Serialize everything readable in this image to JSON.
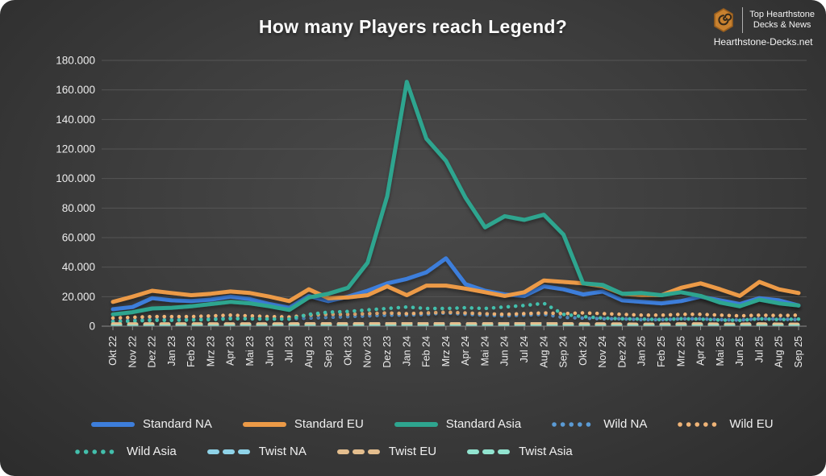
{
  "page": {
    "background": "#ffffff",
    "card_bg_center": "#4a4a4a",
    "card_bg_edge": "#2c2c2c",
    "gridline_color": "#555555",
    "axis_text_color": "#ececec"
  },
  "header": {
    "title": "How many Players reach Legend?",
    "logo": {
      "line1": "Top Hearthstone",
      "line2": "Decks & News",
      "site": "Hearthstone-Decks.net",
      "icon": "hearthstone-spiral-icon",
      "icon_color": "#C8812F"
    }
  },
  "chart_data": {
    "type": "line",
    "title": "How many Players reach Legend?",
    "x_labels": [
      "Okt 22",
      "Nov 22",
      "Dez 22",
      "Jan 23",
      "Feb 23",
      "Mrz 23",
      "Apr 23",
      "Mai 23",
      "Jun 23",
      "Jul 23",
      "Aug 23",
      "Sep 23",
      "Okt 23",
      "Nov 23",
      "Dez 23",
      "Jan 24",
      "Feb 24",
      "Mrz 24",
      "Apr 24",
      "Mai 24",
      "Jun 24",
      "Jul 24",
      "Aug 24",
      "Sep 24",
      "Okt 24",
      "Nov 24",
      "Dez 24",
      "Jan 25",
      "Feb 25",
      "Mrz 25",
      "Apr 25",
      "Mai 25",
      "Jun 25",
      "Jul 25",
      "Aug 25",
      "Sep 25"
    ],
    "ylim": [
      0,
      180000
    ],
    "ytick_step": 20000,
    "ytick_labels": [
      "0",
      "20.000",
      "40.000",
      "60.000",
      "80.000",
      "100.000",
      "120.000",
      "140.000",
      "160.000",
      "180.000"
    ],
    "grid": true,
    "legend_position": "bottom",
    "series": [
      {
        "name": "Standard NA",
        "style": "solid",
        "color": "#3D7EDB",
        "values": [
          11500,
          13000,
          19000,
          17500,
          17000,
          18000,
          20000,
          18300,
          15000,
          12500,
          20500,
          17000,
          20000,
          24000,
          29000,
          32000,
          36500,
          46000,
          28500,
          24000,
          21500,
          20500,
          27000,
          25000,
          21500,
          23500,
          17500,
          16500,
          15500,
          17000,
          20000,
          17500,
          15000,
          19000,
          17500,
          14000
        ]
      },
      {
        "name": "Standard EU",
        "style": "solid",
        "color": "#EC9A47",
        "values": [
          16500,
          20000,
          24000,
          22500,
          21000,
          22000,
          23500,
          22500,
          20000,
          17000,
          25000,
          19000,
          19500,
          21000,
          27000,
          21000,
          27500,
          27500,
          25500,
          23000,
          20500,
          23000,
          31000,
          30000,
          29000,
          27000,
          22000,
          21000,
          21000,
          26000,
          29000,
          25000,
          20500,
          30000,
          25000,
          22500
        ]
      },
      {
        "name": "Standard Asia",
        "style": "solid",
        "color": "#2EA58F",
        "values": [
          8000,
          9500,
          12000,
          12500,
          13500,
          15000,
          16500,
          15500,
          13500,
          11000,
          19500,
          22000,
          26000,
          43000,
          88000,
          165500,
          127000,
          112000,
          87000,
          67000,
          74500,
          72000,
          75500,
          62000,
          29000,
          28000,
          22000,
          22500,
          21000,
          23000,
          20500,
          16000,
          13500,
          18000,
          15500,
          14000
        ]
      },
      {
        "name": "Wild NA",
        "style": "dotted",
        "color": "#5B9BD5",
        "values": [
          3500,
          4000,
          4500,
          4500,
          4500,
          5000,
          5500,
          5000,
          4800,
          4800,
          5500,
          6000,
          6500,
          7000,
          7500,
          7500,
          8000,
          9000,
          8000,
          7500,
          7000,
          7500,
          8000,
          6000,
          5500,
          5000,
          5000,
          4500,
          4500,
          5000,
          5000,
          4500,
          4200,
          5000,
          4800,
          4500
        ]
      },
      {
        "name": "Wild EU",
        "style": "dotted",
        "color": "#F0B477",
        "values": [
          5500,
          6000,
          6500,
          6500,
          6500,
          7000,
          7500,
          7000,
          6500,
          6200,
          7500,
          8000,
          8000,
          8500,
          9000,
          8500,
          9000,
          9500,
          9000,
          8500,
          8000,
          8500,
          9000,
          8500,
          9000,
          8500,
          8000,
          7500,
          7500,
          8000,
          8000,
          7500,
          7000,
          7500,
          7200,
          7500
        ]
      },
      {
        "name": "Wild Asia",
        "style": "dotted",
        "color": "#43BFAC",
        "values": [
          3000,
          3500,
          4000,
          4000,
          4200,
          4500,
          5000,
          5000,
          4800,
          4800,
          8000,
          9500,
          10000,
          11000,
          12000,
          13000,
          12000,
          12000,
          12500,
          12000,
          13000,
          14000,
          15500,
          8000,
          6500,
          5500,
          5000,
          4800,
          4500,
          5000,
          4800,
          4200,
          4000,
          5000,
          4500,
          4800
        ]
      },
      {
        "name": "Twist NA",
        "style": "dashed",
        "color": "#8FD3E8",
        "values": [
          1000,
          1000,
          1000,
          1000,
          1000,
          1000,
          1000,
          1000,
          1000,
          1000,
          1200,
          1200,
          1200,
          1200,
          1500,
          1500,
          1300,
          1300,
          1200,
          1200,
          1300,
          1300,
          1500,
          1300,
          1100,
          1000,
          1000,
          900,
          900,
          1000,
          1000,
          900,
          900,
          1000,
          900,
          900
        ]
      },
      {
        "name": "Twist EU",
        "style": "dashed",
        "color": "#E4BE8E",
        "values": [
          1300,
          1300,
          1300,
          1300,
          1300,
          1300,
          1300,
          1300,
          1300,
          1300,
          1500,
          1500,
          1500,
          1600,
          1800,
          2000,
          1800,
          1600,
          1500,
          1500,
          2000,
          1800,
          2200,
          1600,
          1300,
          1300,
          1200,
          1100,
          1100,
          1300,
          1300,
          1100,
          1100,
          1300,
          1100,
          1100
        ]
      },
      {
        "name": "Twist Asia",
        "style": "dashed",
        "color": "#92E4D0",
        "values": [
          600,
          600,
          600,
          600,
          600,
          600,
          600,
          600,
          600,
          600,
          700,
          700,
          700,
          700,
          800,
          800,
          700,
          700,
          700,
          700,
          800,
          800,
          900,
          700,
          600,
          600,
          600,
          500,
          500,
          600,
          600,
          500,
          500,
          600,
          500,
          500
        ]
      }
    ]
  },
  "legend": {
    "rows": [
      5,
      4
    ]
  }
}
